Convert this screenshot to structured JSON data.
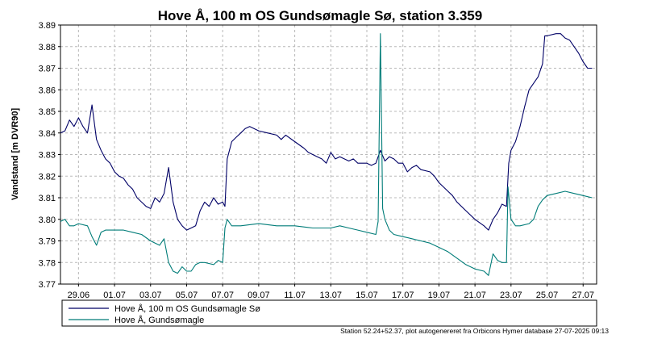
{
  "chart_data": {
    "type": "line",
    "title": "Hove Å, 100 m OS Gundsømagle Sø, station 3.359",
    "ylabel": "Vandstand [m DVR90]",
    "xlabel": "",
    "ylim": [
      3.77,
      3.89
    ],
    "yticks": [
      "3.77",
      "3.78",
      "3.79",
      "3.80",
      "3.81",
      "3.82",
      "3.83",
      "3.84",
      "3.85",
      "3.86",
      "3.87",
      "3.88",
      "3.89"
    ],
    "xlim": [
      "2025-06-28T00:00",
      "2025-07-27T18:00"
    ],
    "xticks": [
      {
        "date": "2025-06-29",
        "label": "29.06"
      },
      {
        "date": "2025-07-01",
        "label": "01.07"
      },
      {
        "date": "2025-07-03",
        "label": "03.07"
      },
      {
        "date": "2025-07-05",
        "label": "05.07"
      },
      {
        "date": "2025-07-07",
        "label": "07.07"
      },
      {
        "date": "2025-07-09",
        "label": "09.07"
      },
      {
        "date": "2025-07-11",
        "label": "11.07"
      },
      {
        "date": "2025-07-13",
        "label": "13.07"
      },
      {
        "date": "2025-07-15",
        "label": "15.07"
      },
      {
        "date": "2025-07-17",
        "label": "17.07"
      },
      {
        "date": "2025-07-19",
        "label": "19.07"
      },
      {
        "date": "2025-07-21",
        "label": "21.07"
      },
      {
        "date": "2025-07-23",
        "label": "23.07"
      },
      {
        "date": "2025-07-25",
        "label": "25.07"
      },
      {
        "date": "2025-07-27",
        "label": "27.07"
      }
    ],
    "grid": true,
    "legend_position": "bottom",
    "series": [
      {
        "name": "Hove Å, 100 m OS Gundsømagle Sø",
        "color": "#000066",
        "points": [
          [
            "2025-06-28T00:00",
            3.84
          ],
          [
            "2025-06-28T06:00",
            3.841
          ],
          [
            "2025-06-28T12:00",
            3.846
          ],
          [
            "2025-06-28T18:00",
            3.843
          ],
          [
            "2025-06-29T00:00",
            3.847
          ],
          [
            "2025-06-29T06:00",
            3.843
          ],
          [
            "2025-06-29T12:00",
            3.84
          ],
          [
            "2025-06-29T18:00",
            3.853
          ],
          [
            "2025-06-30T00:00",
            3.837
          ],
          [
            "2025-06-30T06:00",
            3.832
          ],
          [
            "2025-06-30T12:00",
            3.828
          ],
          [
            "2025-06-30T18:00",
            3.826
          ],
          [
            "2025-07-01T00:00",
            3.822
          ],
          [
            "2025-07-01T06:00",
            3.82
          ],
          [
            "2025-07-01T12:00",
            3.819
          ],
          [
            "2025-07-01T18:00",
            3.816
          ],
          [
            "2025-07-02T00:00",
            3.814
          ],
          [
            "2025-07-02T06:00",
            3.81
          ],
          [
            "2025-07-02T12:00",
            3.808
          ],
          [
            "2025-07-02T18:00",
            3.806
          ],
          [
            "2025-07-03T00:00",
            3.805
          ],
          [
            "2025-07-03T06:00",
            3.81
          ],
          [
            "2025-07-03T12:00",
            3.808
          ],
          [
            "2025-07-03T18:00",
            3.812
          ],
          [
            "2025-07-04T00:00",
            3.824
          ],
          [
            "2025-07-04T06:00",
            3.808
          ],
          [
            "2025-07-04T12:00",
            3.8
          ],
          [
            "2025-07-04T18:00",
            3.797
          ],
          [
            "2025-07-05T00:00",
            3.795
          ],
          [
            "2025-07-05T06:00",
            3.796
          ],
          [
            "2025-07-05T12:00",
            3.797
          ],
          [
            "2025-07-05T18:00",
            3.804
          ],
          [
            "2025-07-06T00:00",
            3.808
          ],
          [
            "2025-07-06T06:00",
            3.806
          ],
          [
            "2025-07-06T12:00",
            3.81
          ],
          [
            "2025-07-06T18:00",
            3.807
          ],
          [
            "2025-07-07T00:00",
            3.808
          ],
          [
            "2025-07-07T03:00",
            3.806
          ],
          [
            "2025-07-07T06:00",
            3.828
          ],
          [
            "2025-07-07T12:00",
            3.836
          ],
          [
            "2025-07-07T18:00",
            3.838
          ],
          [
            "2025-07-08T00:00",
            3.84
          ],
          [
            "2025-07-08T06:00",
            3.842
          ],
          [
            "2025-07-08T12:00",
            3.843
          ],
          [
            "2025-07-09T00:00",
            3.841
          ],
          [
            "2025-07-09T12:00",
            3.84
          ],
          [
            "2025-07-10T00:00",
            3.839
          ],
          [
            "2025-07-10T06:00",
            3.837
          ],
          [
            "2025-07-10T12:00",
            3.839
          ],
          [
            "2025-07-11T00:00",
            3.836
          ],
          [
            "2025-07-11T12:00",
            3.833
          ],
          [
            "2025-07-11T18:00",
            3.831
          ],
          [
            "2025-07-12T00:00",
            3.83
          ],
          [
            "2025-07-12T06:00",
            3.829
          ],
          [
            "2025-07-12T12:00",
            3.828
          ],
          [
            "2025-07-12T18:00",
            3.826
          ],
          [
            "2025-07-13T00:00",
            3.831
          ],
          [
            "2025-07-13T06:00",
            3.828
          ],
          [
            "2025-07-13T12:00",
            3.829
          ],
          [
            "2025-07-13T18:00",
            3.828
          ],
          [
            "2025-07-14T00:00",
            3.827
          ],
          [
            "2025-07-14T06:00",
            3.828
          ],
          [
            "2025-07-14T12:00",
            3.826
          ],
          [
            "2025-07-14T18:00",
            3.826
          ],
          [
            "2025-07-15T00:00",
            3.826
          ],
          [
            "2025-07-15T06:00",
            3.825
          ],
          [
            "2025-07-15T12:00",
            3.826
          ],
          [
            "2025-07-15T18:00",
            3.832
          ],
          [
            "2025-07-16T00:00",
            3.827
          ],
          [
            "2025-07-16T06:00",
            3.829
          ],
          [
            "2025-07-16T12:00",
            3.828
          ],
          [
            "2025-07-16T18:00",
            3.826
          ],
          [
            "2025-07-17T00:00",
            3.826
          ],
          [
            "2025-07-17T06:00",
            3.822
          ],
          [
            "2025-07-17T12:00",
            3.824
          ],
          [
            "2025-07-17T18:00",
            3.825
          ],
          [
            "2025-07-18T00:00",
            3.823
          ],
          [
            "2025-07-18T12:00",
            3.822
          ],
          [
            "2025-07-18T18:00",
            3.82
          ],
          [
            "2025-07-19T00:00",
            3.817
          ],
          [
            "2025-07-19T06:00",
            3.815
          ],
          [
            "2025-07-19T12:00",
            3.813
          ],
          [
            "2025-07-19T18:00",
            3.811
          ],
          [
            "2025-07-20T00:00",
            3.808
          ],
          [
            "2025-07-20T12:00",
            3.804
          ],
          [
            "2025-07-21T00:00",
            3.8
          ],
          [
            "2025-07-21T12:00",
            3.797
          ],
          [
            "2025-07-21T18:00",
            3.795
          ],
          [
            "2025-07-22T00:00",
            3.8
          ],
          [
            "2025-07-22T06:00",
            3.803
          ],
          [
            "2025-07-22T12:00",
            3.807
          ],
          [
            "2025-07-22T18:00",
            3.806
          ],
          [
            "2025-07-22T21:00",
            3.826
          ],
          [
            "2025-07-23T00:00",
            3.832
          ],
          [
            "2025-07-23T06:00",
            3.836
          ],
          [
            "2025-07-23T12:00",
            3.843
          ],
          [
            "2025-07-23T18:00",
            3.852
          ],
          [
            "2025-07-24T00:00",
            3.86
          ],
          [
            "2025-07-24T12:00",
            3.866
          ],
          [
            "2025-07-24T18:00",
            3.872
          ],
          [
            "2025-07-24T21:00",
            3.885
          ],
          [
            "2025-07-25T00:00",
            3.885
          ],
          [
            "2025-07-25T12:00",
            3.886
          ],
          [
            "2025-07-25T18:00",
            3.886
          ],
          [
            "2025-07-26T00:00",
            3.884
          ],
          [
            "2025-07-26T06:00",
            3.883
          ],
          [
            "2025-07-26T12:00",
            3.88
          ],
          [
            "2025-07-26T18:00",
            3.877
          ],
          [
            "2025-07-27T00:00",
            3.873
          ],
          [
            "2025-07-27T06:00",
            3.87
          ],
          [
            "2025-07-27T12:00",
            3.87
          ]
        ]
      },
      {
        "name": "Hove Å, Gundsømagle",
        "color": "#007c78",
        "points": [
          [
            "2025-06-28T00:00",
            3.799
          ],
          [
            "2025-06-28T06:00",
            3.8
          ],
          [
            "2025-06-28T12:00",
            3.797
          ],
          [
            "2025-06-28T18:00",
            3.797
          ],
          [
            "2025-06-29T00:00",
            3.798
          ],
          [
            "2025-06-29T12:00",
            3.797
          ],
          [
            "2025-06-29T18:00",
            3.792
          ],
          [
            "2025-06-30T00:00",
            3.788
          ],
          [
            "2025-06-30T06:00",
            3.794
          ],
          [
            "2025-06-30T12:00",
            3.795
          ],
          [
            "2025-07-01T00:00",
            3.795
          ],
          [
            "2025-07-01T12:00",
            3.795
          ],
          [
            "2025-07-02T00:00",
            3.794
          ],
          [
            "2025-07-02T12:00",
            3.793
          ],
          [
            "2025-07-03T00:00",
            3.79
          ],
          [
            "2025-07-03T06:00",
            3.789
          ],
          [
            "2025-07-03T12:00",
            3.788
          ],
          [
            "2025-07-03T18:00",
            3.791
          ],
          [
            "2025-07-04T00:00",
            3.78
          ],
          [
            "2025-07-04T06:00",
            3.776
          ],
          [
            "2025-07-04T12:00",
            3.775
          ],
          [
            "2025-07-04T18:00",
            3.778
          ],
          [
            "2025-07-05T00:00",
            3.776
          ],
          [
            "2025-07-05T06:00",
            3.776
          ],
          [
            "2025-07-05T12:00",
            3.779
          ],
          [
            "2025-07-05T18:00",
            3.78
          ],
          [
            "2025-07-06T00:00",
            3.78
          ],
          [
            "2025-07-06T12:00",
            3.779
          ],
          [
            "2025-07-06T18:00",
            3.781
          ],
          [
            "2025-07-07T00:00",
            3.78
          ],
          [
            "2025-07-07T03:00",
            3.796
          ],
          [
            "2025-07-07T06:00",
            3.8
          ],
          [
            "2025-07-07T12:00",
            3.797
          ],
          [
            "2025-07-08T00:00",
            3.797
          ],
          [
            "2025-07-09T00:00",
            3.798
          ],
          [
            "2025-07-10T00:00",
            3.797
          ],
          [
            "2025-07-11T00:00",
            3.797
          ],
          [
            "2025-07-12T00:00",
            3.796
          ],
          [
            "2025-07-13T00:00",
            3.796
          ],
          [
            "2025-07-13T12:00",
            3.797
          ],
          [
            "2025-07-14T00:00",
            3.796
          ],
          [
            "2025-07-14T12:00",
            3.795
          ],
          [
            "2025-07-15T00:00",
            3.794
          ],
          [
            "2025-07-15T12:00",
            3.793
          ],
          [
            "2025-07-15T15:00",
            3.799
          ],
          [
            "2025-07-15T18:00",
            3.886
          ],
          [
            "2025-07-15T21:00",
            3.805
          ],
          [
            "2025-07-16T00:00",
            3.8
          ],
          [
            "2025-07-16T06:00",
            3.795
          ],
          [
            "2025-07-16T12:00",
            3.793
          ],
          [
            "2025-07-17T00:00",
            3.792
          ],
          [
            "2025-07-17T12:00",
            3.791
          ],
          [
            "2025-07-18T00:00",
            3.79
          ],
          [
            "2025-07-18T12:00",
            3.789
          ],
          [
            "2025-07-19T00:00",
            3.787
          ],
          [
            "2025-07-19T12:00",
            3.785
          ],
          [
            "2025-07-20T00:00",
            3.782
          ],
          [
            "2025-07-20T12:00",
            3.779
          ],
          [
            "2025-07-21T00:00",
            3.777
          ],
          [
            "2025-07-21T12:00",
            3.776
          ],
          [
            "2025-07-21T18:00",
            3.774
          ],
          [
            "2025-07-22T00:00",
            3.784
          ],
          [
            "2025-07-22T06:00",
            3.781
          ],
          [
            "2025-07-22T12:00",
            3.78
          ],
          [
            "2025-07-22T18:00",
            3.78
          ],
          [
            "2025-07-22T20:00",
            3.815
          ],
          [
            "2025-07-23T00:00",
            3.8
          ],
          [
            "2025-07-23T06:00",
            3.797
          ],
          [
            "2025-07-23T12:00",
            3.797
          ],
          [
            "2025-07-24T00:00",
            3.798
          ],
          [
            "2025-07-24T06:00",
            3.8
          ],
          [
            "2025-07-24T12:00",
            3.806
          ],
          [
            "2025-07-24T18:00",
            3.809
          ],
          [
            "2025-07-25T00:00",
            3.811
          ],
          [
            "2025-07-25T12:00",
            3.812
          ],
          [
            "2025-07-26T00:00",
            3.813
          ],
          [
            "2025-07-26T12:00",
            3.812
          ],
          [
            "2025-07-27T00:00",
            3.811
          ],
          [
            "2025-07-27T12:00",
            3.81
          ]
        ]
      }
    ],
    "footer": "Station 52.24+52.37, plot autogenereret fra Orbicons Hymer database 27-07-2025 09:13"
  }
}
